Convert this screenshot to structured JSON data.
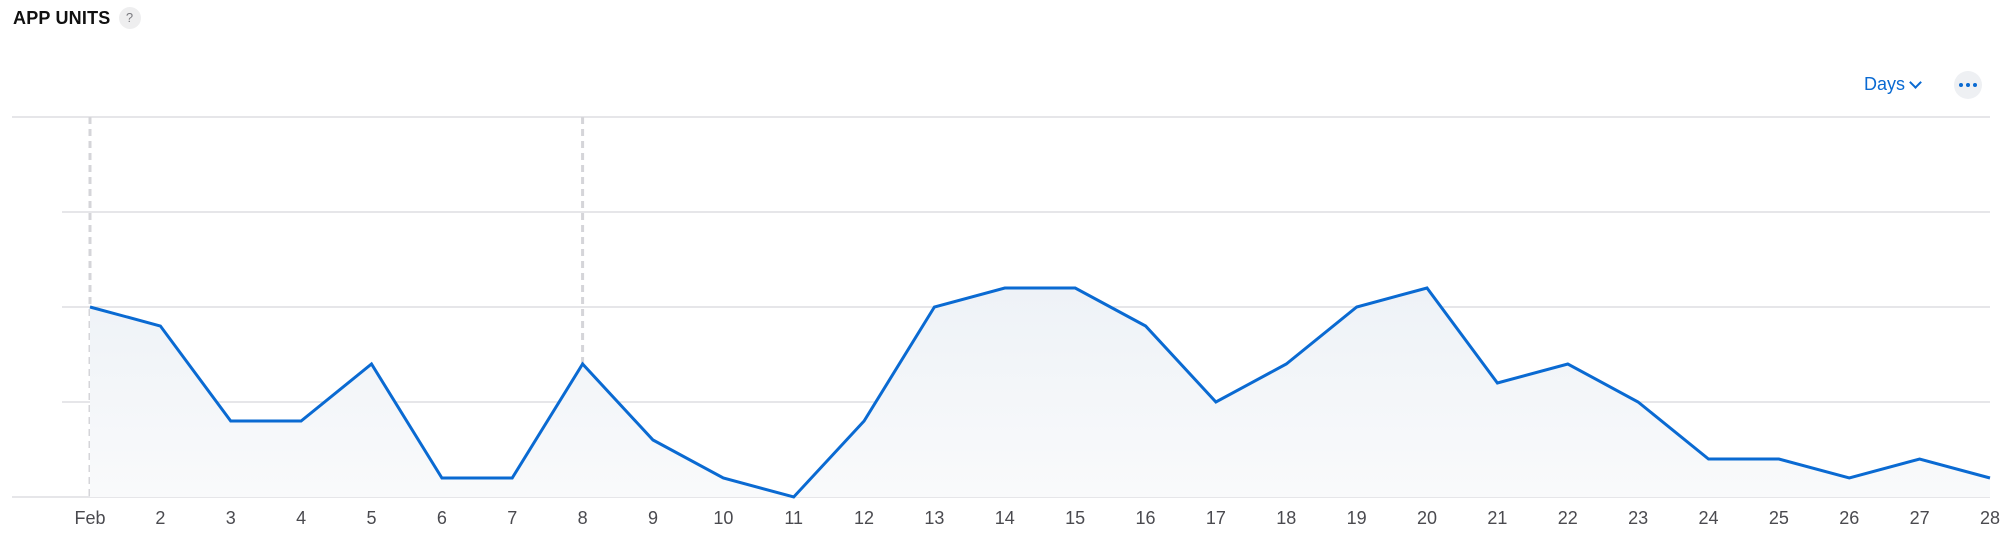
{
  "header": {
    "title": "APP UNITS",
    "help_label": "?"
  },
  "controls": {
    "period_label": "Days",
    "more_icon": "ellipsis-icon",
    "period_icon": "chevron-down-icon"
  },
  "chart_data": {
    "type": "area",
    "title": "APP UNITS",
    "xlabel": "",
    "ylabel": "",
    "x_labels": [
      "Feb",
      "2",
      "3",
      "4",
      "5",
      "6",
      "7",
      "8",
      "9",
      "10",
      "11",
      "12",
      "13",
      "14",
      "15",
      "16",
      "17",
      "18",
      "19",
      "20",
      "21",
      "22",
      "23",
      "24",
      "25",
      "26",
      "27",
      "28"
    ],
    "values": [
      10,
      9,
      4,
      4,
      7,
      1,
      1,
      7,
      3,
      1,
      0,
      4,
      10,
      11,
      11,
      9,
      5,
      7,
      10,
      11,
      6,
      7,
      5,
      2,
      2,
      1,
      2,
      1
    ],
    "y_range": [
      0,
      20
    ],
    "grid": true,
    "markers_at": [
      "Feb",
      "8"
    ],
    "colors": {
      "line": "#0a6ad2",
      "grid": "#d8d8dc",
      "marker": "#d5d5d9",
      "area_top": "#eef2f7",
      "area_bottom": "#f9fafb"
    }
  }
}
